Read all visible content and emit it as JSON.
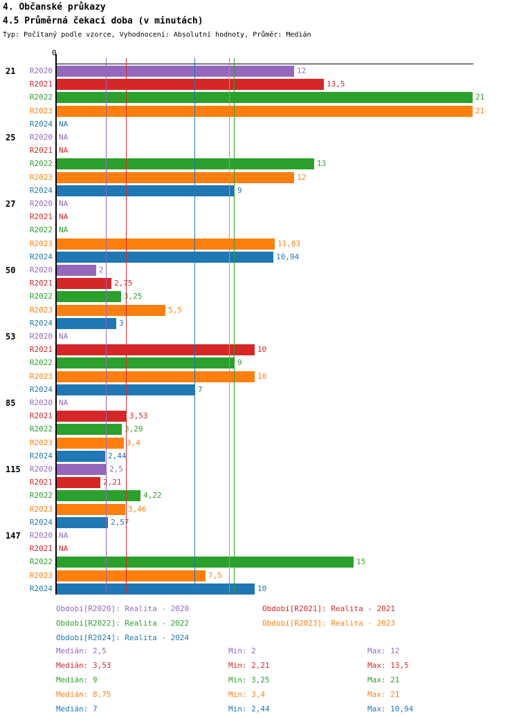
{
  "title": "4. Občanské průkazy",
  "subtitle": "4.5 Průměrná čekací doba (v minutách)",
  "meta_line": "Typ: Počítaný podle vzorce, Vyhodnocení: Absolutní hodnoty, Průměr: Medián",
  "colors": {
    "R2020": "#9467bd",
    "R2021": "#d62728",
    "R2022": "#2ca02c",
    "R2023": "#ff7f0e",
    "R2024": "#1f77b4"
  },
  "chart_data": {
    "type": "bar",
    "orientation": "horizontal",
    "value_axis": {
      "min": 0,
      "max": 21.1,
      "zero_label": "0",
      "grid": "median-lines-only"
    },
    "series_order": [
      "R2020",
      "R2021",
      "R2022",
      "R2023",
      "R2024"
    ],
    "groups": [
      {
        "label": "21",
        "values": [
          12,
          13.5,
          21,
          21,
          null
        ],
        "labels": [
          "12",
          "13,5",
          "21",
          "21",
          "NA"
        ]
      },
      {
        "label": "25",
        "values": [
          null,
          null,
          13,
          12,
          9
        ],
        "labels": [
          "NA",
          "NA",
          "13",
          "12",
          "9"
        ]
      },
      {
        "label": "27",
        "values": [
          null,
          null,
          null,
          11.03,
          10.94
        ],
        "labels": [
          "NA",
          "NA",
          "NA",
          "11,03",
          "10,94"
        ]
      },
      {
        "label": "50",
        "values": [
          2,
          2.75,
          3.25,
          5.5,
          3
        ],
        "labels": [
          "2",
          "2,75",
          "3,25",
          "5,5",
          "3"
        ]
      },
      {
        "label": "53",
        "values": [
          null,
          10,
          9,
          10,
          7
        ],
        "labels": [
          "NA",
          "10",
          "9",
          "10",
          "7"
        ]
      },
      {
        "label": "85",
        "values": [
          null,
          3.53,
          3.29,
          3.4,
          2.44
        ],
        "labels": [
          "NA",
          "3,53",
          "3,29",
          "3,4",
          "2,44"
        ]
      },
      {
        "label": "115",
        "values": [
          2.5,
          2.21,
          4.22,
          3.46,
          2.57
        ],
        "labels": [
          "2,5",
          "2,21",
          "4,22",
          "3,46",
          "2,57"
        ]
      },
      {
        "label": "147",
        "values": [
          null,
          null,
          15,
          7.5,
          10
        ],
        "labels": [
          "NA",
          "NA",
          "15",
          "7,5",
          "10"
        ]
      }
    ],
    "median_lines": [
      {
        "series": "R2020",
        "value": 2.5
      },
      {
        "series": "R2021",
        "value": 3.53
      },
      {
        "series": "R2022",
        "value": 9
      },
      {
        "series": "R2023",
        "value": 8.75
      },
      {
        "series": "R2024",
        "value": 7
      }
    ]
  },
  "legend": {
    "items": [
      {
        "series": "R2020",
        "text": "Období[R2020]: Realita - 2020"
      },
      {
        "series": "R2021",
        "text": "Období[R2021]: Realita - 2021"
      },
      {
        "series": "R2022",
        "text": "Období[R2022]: Realita - 2022"
      },
      {
        "series": "R2023",
        "text": "Období[R2023]: Realita - 2023"
      },
      {
        "series": "R2024",
        "text": "Období[R2024]: Realita - 2024"
      }
    ]
  },
  "stats": {
    "rows": [
      {
        "series": "R2020",
        "median": "Medián: 2,5",
        "min": "Min: 2",
        "max": "Max: 12"
      },
      {
        "series": "R2021",
        "median": "Medián: 3,53",
        "min": "Min: 2,21",
        "max": "Max: 13,5"
      },
      {
        "series": "R2022",
        "median": "Medián: 9",
        "min": "Min: 3,25",
        "max": "Max: 21"
      },
      {
        "series": "R2023",
        "median": "Medián: 8,75",
        "min": "Min: 3,4",
        "max": "Max: 21"
      },
      {
        "series": "R2024",
        "median": "Medián: 7",
        "min": "Min: 2,44",
        "max": "Max: 10,94"
      }
    ]
  }
}
